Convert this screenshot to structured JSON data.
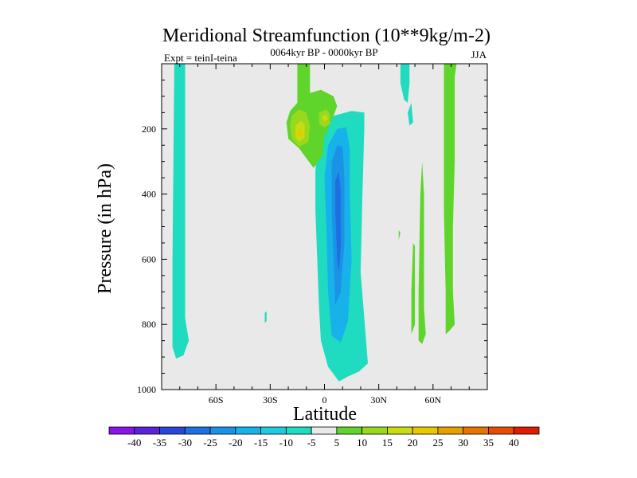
{
  "chart_data": {
    "type": "contour",
    "title": "Meridional Streamfunction (10**9kg/m-2)",
    "subtitle_left": "Expt = teinI-teina",
    "subtitle_center": "0064kyr BP - 0000kyr BP",
    "subtitle_right": "JJA",
    "xlabel": "Latitude",
    "ylabel": "Pressure (in hPa)",
    "xlim": [
      -90,
      90
    ],
    "ylim": [
      1000,
      0
    ],
    "x_ticks": [
      {
        "value": -60,
        "label": "60S"
      },
      {
        "value": -30,
        "label": "30S"
      },
      {
        "value": 0,
        "label": "0"
      },
      {
        "value": 30,
        "label": "30N"
      },
      {
        "value": 60,
        "label": "60N"
      }
    ],
    "y_ticks": [
      {
        "value": 200,
        "label": "200"
      },
      {
        "value": 400,
        "label": "400"
      },
      {
        "value": 600,
        "label": "600"
      },
      {
        "value": 800,
        "label": "800"
      },
      {
        "value": 1000,
        "label": "1000"
      }
    ],
    "background_color": "#e9e9e9",
    "contour_levels": [
      -40,
      -35,
      -30,
      -25,
      -20,
      -15,
      -10,
      -5,
      5,
      10,
      15,
      20,
      25,
      30,
      35,
      40
    ],
    "colorbar_colors": [
      "#8a14e6",
      "#5b22d8",
      "#2a46d8",
      "#1e6fe0",
      "#1b92e6",
      "#18b2ea",
      "#1ccce0",
      "#1fdcc0",
      "#e9e9e9",
      "#5fd42a",
      "#9ad81e",
      "#c8dc10",
      "#e8c800",
      "#e8a000",
      "#e87400",
      "#e84c00",
      "#e01c00"
    ],
    "regions": [
      {
        "name": "sh-high-lat-cell",
        "level_color": "#1fdcc0",
        "points": [
          [
            -83,
            0
          ],
          [
            -77,
            0
          ],
          [
            -77,
            780
          ],
          [
            -75,
            850
          ],
          [
            -78,
            895
          ],
          [
            -82,
            905
          ],
          [
            -84,
            870
          ],
          [
            -84,
            600
          ]
        ]
      },
      {
        "name": "eq-negative-outer",
        "level_color": "#1fdcc0",
        "points": [
          [
            -4,
            260
          ],
          [
            5,
            160
          ],
          [
            15,
            145
          ],
          [
            22,
            150
          ],
          [
            22,
            200
          ],
          [
            21,
            400
          ],
          [
            20,
            640
          ],
          [
            22,
            780
          ],
          [
            24,
            920
          ],
          [
            19,
            945
          ],
          [
            13,
            960
          ],
          [
            8,
            975
          ],
          [
            2,
            930
          ],
          [
            -2,
            850
          ],
          [
            -3,
            750
          ],
          [
            -4,
            600
          ],
          [
            -5,
            450
          ],
          [
            -5,
            330
          ]
        ]
      },
      {
        "name": "eq-negative-mid",
        "level_color": "#18b2ea",
        "points": [
          [
            2,
            250
          ],
          [
            7,
            200
          ],
          [
            12,
            195
          ],
          [
            14,
            260
          ],
          [
            14,
            400
          ],
          [
            15,
            600
          ],
          [
            13,
            790
          ],
          [
            9,
            855
          ],
          [
            4,
            835
          ],
          [
            2,
            700
          ],
          [
            1,
            500
          ],
          [
            0,
            350
          ]
        ]
      },
      {
        "name": "eq-negative-inner",
        "level_color": "#1b92e6",
        "points": [
          [
            4,
            300
          ],
          [
            7,
            250
          ],
          [
            10,
            255
          ],
          [
            11,
            350
          ],
          [
            11,
            550
          ],
          [
            9,
            700
          ],
          [
            6,
            740
          ],
          [
            5,
            600
          ],
          [
            4,
            450
          ]
        ]
      },
      {
        "name": "eq-negative-core",
        "level_color": "#1e6fe0",
        "points": [
          [
            6,
            360
          ],
          [
            8,
            330
          ],
          [
            9,
            400
          ],
          [
            9,
            560
          ],
          [
            8,
            640
          ],
          [
            7,
            600
          ],
          [
            6,
            450
          ]
        ]
      },
      {
        "name": "nh-tropopause-cell",
        "level_color": "#1fdcc0",
        "points": [
          [
            42,
            0
          ],
          [
            47,
            0
          ],
          [
            47,
            60
          ],
          [
            46,
            120
          ],
          [
            44,
            110
          ],
          [
            42,
            60
          ]
        ]
      },
      {
        "name": "nh-tropopause-cell-2",
        "level_color": "#1fdcc0",
        "points": [
          [
            46,
            150
          ],
          [
            48,
            120
          ],
          [
            49,
            180
          ],
          [
            47,
            190
          ]
        ]
      },
      {
        "name": "positive-upper-cell",
        "level_color": "#5fd42a",
        "points": [
          [
            -15,
            0
          ],
          [
            -8,
            0
          ],
          [
            -8,
            90
          ],
          [
            -2,
            80
          ],
          [
            5,
            100
          ],
          [
            7,
            130
          ],
          [
            5,
            160
          ],
          [
            2,
            200
          ],
          [
            0,
            220
          ],
          [
            -1,
            280
          ],
          [
            -6,
            320
          ],
          [
            -10,
            290
          ],
          [
            -14,
            260
          ],
          [
            -20,
            230
          ],
          [
            -21,
            180
          ],
          [
            -19,
            145
          ],
          [
            -15,
            120
          ]
        ]
      },
      {
        "name": "positive-upper-inner",
        "level_color": "#9ad81e",
        "points": [
          [
            -18,
            160
          ],
          [
            -14,
            140
          ],
          [
            -10,
            150
          ],
          [
            -8,
            190
          ],
          [
            -9,
            240
          ],
          [
            -14,
            255
          ],
          [
            -18,
            230
          ],
          [
            -19,
            190
          ]
        ]
      },
      {
        "name": "positive-upper-inner-2",
        "level_color": "#9ad81e",
        "points": [
          [
            -3,
            150
          ],
          [
            1,
            140
          ],
          [
            3,
            155
          ],
          [
            3,
            185
          ],
          [
            0,
            195
          ],
          [
            -3,
            185
          ]
        ]
      },
      {
        "name": "positive-upper-core",
        "level_color": "#c8dc10",
        "points": [
          [
            -16,
            190
          ],
          [
            -13,
            175
          ],
          [
            -11,
            185
          ],
          [
            -11,
            225
          ],
          [
            -14,
            240
          ],
          [
            -16,
            225
          ]
        ]
      },
      {
        "name": "positive-upper-core-2",
        "level_color": "#c8dc10",
        "points": [
          [
            -1,
            160
          ],
          [
            1,
            158
          ],
          [
            2,
            170
          ],
          [
            0,
            178
          ],
          [
            -1,
            172
          ]
        ]
      },
      {
        "name": "positive-upper-peak",
        "level_color": "#e8c800",
        "points": [
          [
            -15,
            210
          ],
          [
            -13,
            200
          ],
          [
            -12,
            215
          ],
          [
            -13,
            225
          ],
          [
            -15,
            222
          ]
        ]
      },
      {
        "name": "nh-positive-narrow-a",
        "level_color": "#5fd42a",
        "points": [
          [
            53,
            400
          ],
          [
            54,
            300
          ],
          [
            55,
            400
          ],
          [
            55,
            750
          ],
          [
            56,
            830
          ],
          [
            54,
            860
          ],
          [
            52,
            850
          ],
          [
            52,
            700
          ]
        ]
      },
      {
        "name": "nh-positive-narrow-b",
        "level_color": "#5fd42a",
        "points": [
          [
            49,
            550
          ],
          [
            50,
            560
          ],
          [
            50,
            800
          ],
          [
            48,
            830
          ],
          [
            48,
            700
          ]
        ]
      },
      {
        "name": "nh-positive-narrow-c",
        "level_color": "#5fd42a",
        "points": [
          [
            41,
            510
          ],
          [
            42,
            520
          ],
          [
            41,
            540
          ]
        ]
      },
      {
        "name": "nh-high-lat-positive",
        "level_color": "#5fd42a",
        "points": [
          [
            66,
            0
          ],
          [
            73,
            0
          ],
          [
            72,
            40
          ],
          [
            72,
            120
          ],
          [
            72,
            300
          ],
          [
            71,
            500
          ],
          [
            71,
            700
          ],
          [
            72,
            800
          ],
          [
            69,
            820
          ],
          [
            67,
            830
          ],
          [
            67,
            700
          ],
          [
            66,
            450
          ],
          [
            66,
            200
          ]
        ]
      },
      {
        "name": "small-blob",
        "level_color": "#1fdcc0",
        "points": [
          [
            -33,
            765
          ],
          [
            -32,
            760
          ],
          [
            -32,
            790
          ],
          [
            -33,
            795
          ]
        ]
      }
    ]
  }
}
